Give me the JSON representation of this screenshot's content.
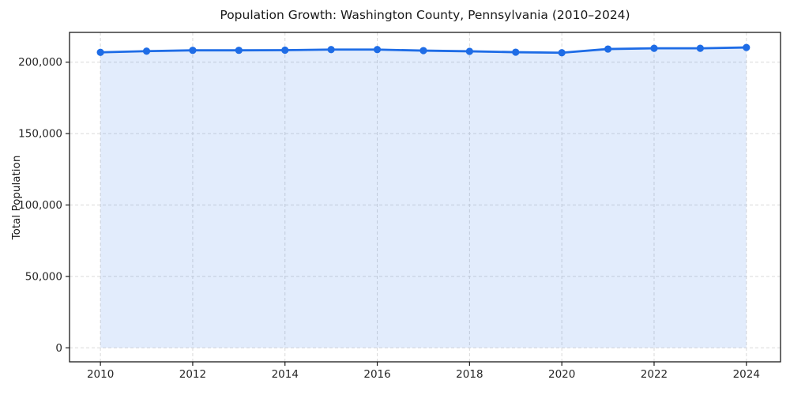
{
  "figure": {
    "background": "#ffffff"
  },
  "chart_data": {
    "type": "area",
    "title": "Population Growth: Washington County, Pennsylvania (2010–2024)",
    "xlabel": "",
    "ylabel": "Total Population",
    "x": [
      2010,
      2011,
      2012,
      2013,
      2014,
      2015,
      2016,
      2017,
      2018,
      2019,
      2020,
      2021,
      2022,
      2023,
      2024
    ],
    "series": [
      {
        "name": "Total Population",
        "values": [
          206900,
          207700,
          208300,
          208300,
          208400,
          208800,
          208800,
          208100,
          207600,
          207000,
          206600,
          209200,
          209700,
          209700,
          210300
        ]
      }
    ],
    "xticks": [
      2010,
      2012,
      2014,
      2016,
      2018,
      2020,
      2022,
      2024
    ],
    "xtick_labels": [
      "2010",
      "2012",
      "2014",
      "2016",
      "2018",
      "2020",
      "2022",
      "2024"
    ],
    "yticks": [
      0,
      50000,
      100000,
      150000,
      200000
    ],
    "ytick_labels": [
      "0",
      "50,000",
      "100,000",
      "150,000",
      "200,000"
    ],
    "xlim": [
      2009.33,
      2024.74
    ],
    "ylim": [
      -9800,
      220850
    ],
    "grid": true,
    "legend_position": "none",
    "colors": {
      "line": "#1e6ce6",
      "marker": "#1e6ce6",
      "fill": "rgba(30, 108, 230, 0.13)",
      "grid": "#d9d9d9",
      "spine": "#1a1a1a",
      "tick_text": "#262626"
    },
    "style": {
      "line_width": 2.8,
      "marker_radius": 4.6,
      "grid_dash": "4 3"
    }
  }
}
